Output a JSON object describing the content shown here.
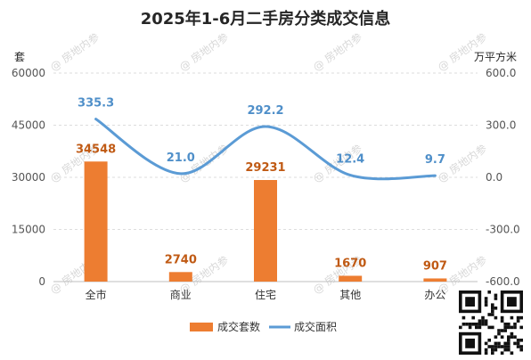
{
  "chart_data": {
    "type": "bar",
    "title": "2025年1-6月二手房分类成交信息",
    "categories": [
      "全市",
      "商业",
      "住宅",
      "其他",
      "办公"
    ],
    "series": [
      {
        "name": "成交套数",
        "type": "bar",
        "axis": "left",
        "values": [
          34548,
          2740,
          29231,
          1670,
          907
        ]
      },
      {
        "name": "成交面积",
        "type": "line",
        "smooth": true,
        "axis": "right",
        "values": [
          335.3,
          21.0,
          292.2,
          12.4,
          9.7
        ]
      }
    ],
    "left_axis": {
      "label": "套",
      "ticks": [
        "0",
        "15000",
        "30000",
        "45000",
        "60000"
      ],
      "range": [
        0,
        60000
      ]
    },
    "right_axis": {
      "label": "万平方米",
      "ticks": [
        "-600.0",
        "-300.0",
        "0.0",
        "300.0",
        "600.0"
      ],
      "range": [
        -600,
        600
      ]
    },
    "colors": {
      "bar": "#ed7d31",
      "line": "#5b9bd5"
    },
    "legend": "bottom",
    "grid": true
  },
  "watermark": "房地内参"
}
